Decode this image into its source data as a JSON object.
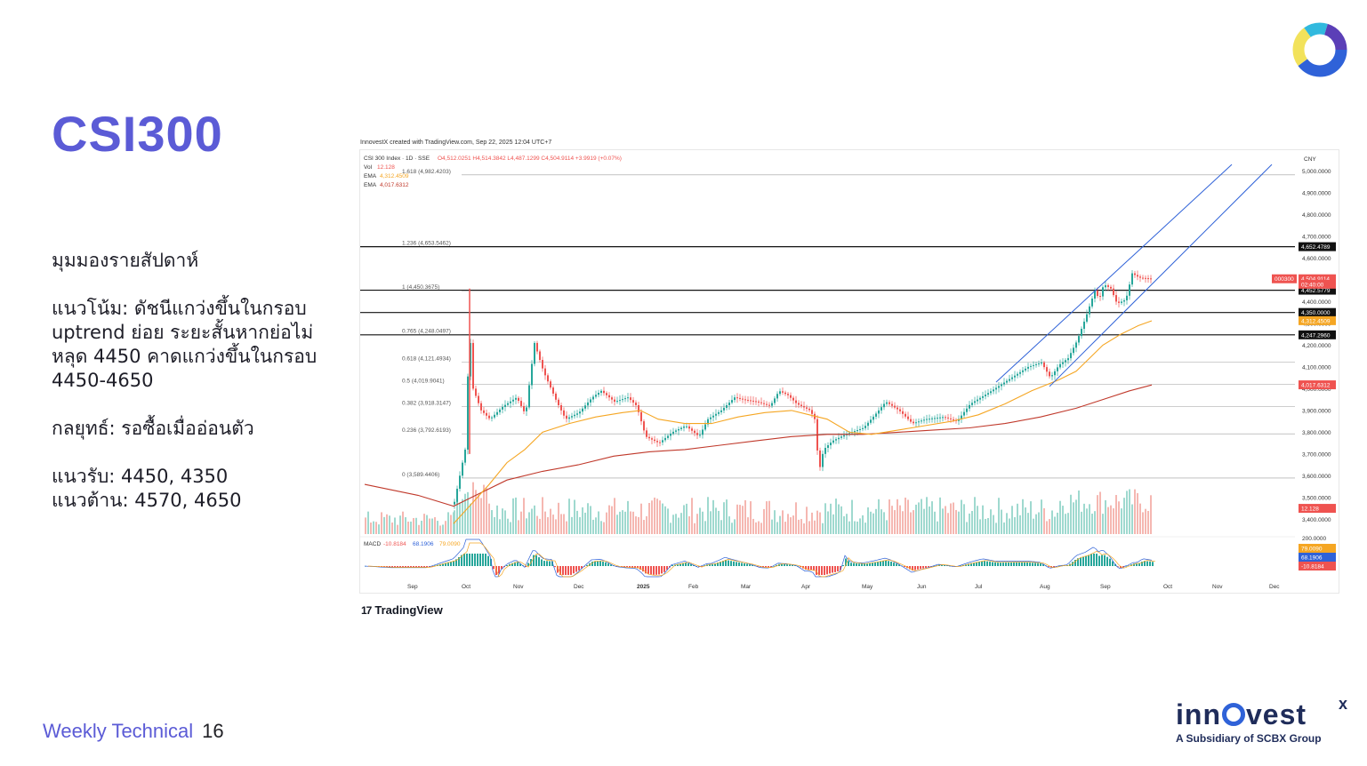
{
  "slide": {
    "title": "CSI300",
    "commentary": {
      "heading": "มุมมองรายสัปดาห์",
      "trend": "แนวโน้ม: ดัชนีแกว่งขึ้นในกรอบ uptrend ย่อย ระยะสั้นหากย่อไม่หลุด 4450 คาดแกว่งขึ้นในกรอบ 4450-4650",
      "strategy": "กลยุทธ์: รอซื้อเมื่ออ่อนตัว",
      "support": "แนวรับ: 4450, 4350",
      "resistance": "แนวต้าน: 4570, 4650"
    },
    "footer": {
      "label": "Weekly Technical",
      "page": "16"
    },
    "brand": {
      "name_pre": "inn",
      "name_post": "vest",
      "superscript": "x",
      "tagline": "A Subsidiary of SCBX Group"
    },
    "colors": {
      "accent": "#5b5bd6",
      "brand_navy": "#1f2c5a",
      "logo_blue": "#2f62d8"
    },
    "icons": {
      "logo": "ring-logo-icon",
      "tradingview": "tradingview-logo-icon"
    }
  },
  "chart_data": {
    "type": "candlestick",
    "credit": "InnovestX created with TradingView.com, Sep 22, 2025 12:04 UTC+7",
    "legend": {
      "symbol_line": "CSI 300 Index · 1D · SSE",
      "ohlc": {
        "O": "4,512.0251",
        "H": "4,514.3842",
        "L": "4,487.1299",
        "C": "4,504.9114",
        "change": "+3.9919 (+0.07%)"
      },
      "vol_label": "Vol",
      "vol_value": "12.128",
      "ema1_label": "EMA",
      "ema1_value": "4,312.4509",
      "ema2_label": "EMA",
      "ema2_value": "4,017.6312"
    },
    "currency": "CNY",
    "y_axis_ticks": [
      5000,
      4900,
      4800,
      4700,
      4600,
      4500,
      4400,
      4300,
      4200,
      4100,
      4000,
      3900,
      3800,
      3700,
      3600,
      3500,
      3400
    ],
    "y_tick_labels": [
      "5,000.0000",
      "4,900.0000",
      "4,800.0000",
      "4,700.0000",
      "4,600.0000",
      "4,500.0000",
      "4,400.0000",
      "4,300.0000",
      "4,200.0000",
      "4,100.0000",
      "4,000.0000",
      "3,900.0000",
      "3,800.0000",
      "3,700.0000",
      "3,600.0000",
      "3,500.0000",
      "3,400.0000"
    ],
    "x_axis_labels": [
      "Sep",
      "Oct",
      "Nov",
      "Dec",
      "2025",
      "Feb",
      "Mar",
      "Apr",
      "May",
      "Jun",
      "Jul",
      "Aug",
      "Sep",
      "Oct",
      "Nov",
      "Dec"
    ],
    "fibonacci": [
      {
        "label": "1.618 (4,982.4203)",
        "value": 4982.4203
      },
      {
        "label": "1.236 (4,653.5462)",
        "value": 4653.5462
      },
      {
        "label": "1 (4,450.3675)",
        "value": 4450.3675
      },
      {
        "label": "0.765 (4,248.0497)",
        "value": 4248.0497
      },
      {
        "label": "0.618 (4,121.4934)",
        "value": 4121.4934
      },
      {
        "label": "0.5 (4,019.9041)",
        "value": 4019.9041
      },
      {
        "label": "0.382 (3,918.3147)",
        "value": 3918.3147
      },
      {
        "label": "0.236 (3,792.6193)",
        "value": 3792.6193
      },
      {
        "label": "0 (3,589.4406)",
        "value": 3589.4406
      }
    ],
    "horizontal_levels": [
      {
        "label": "4,652.4789",
        "value": 4652.4789
      },
      {
        "label": "4,452.5779",
        "value": 4452.5779
      },
      {
        "label": "4,350.0000",
        "value": 4350.0
      },
      {
        "label": "4,247.2960",
        "value": 4247.296
      }
    ],
    "price_tags": [
      {
        "label": "000300",
        "value": 4504.9114,
        "color": "#ef5350"
      },
      {
        "label": "4,504.9114",
        "value": 4504.9114,
        "color": "#ef5350"
      },
      {
        "label": "02:40:00",
        "value": 4480,
        "color": "#ef5350"
      },
      {
        "label": "4,312.4509",
        "value": 4312.4509,
        "color": "#f5a623"
      },
      {
        "label": "4,017.6312",
        "value": 4017.6312,
        "color": "#ef5350"
      },
      {
        "label": "12.128",
        "value": 3450,
        "color": "#ef5350"
      }
    ],
    "macd": {
      "label": "MACD",
      "v1": "-10.8184",
      "v2": "68.1906",
      "v3": "79.0090",
      "axis_label": "200.0000",
      "tags": [
        {
          "label": "79.0090",
          "color": "#f5a623"
        },
        {
          "label": "68.1906",
          "color": "#2f62d8"
        },
        {
          "label": "-10.8184",
          "color": "#ef5350"
        }
      ]
    },
    "price_waypoints": [
      [
        0,
        3420
      ],
      [
        70,
        3360
      ],
      [
        100,
        3480
      ],
      [
        112,
        3720
      ],
      [
        117,
        4280
      ],
      [
        121,
        4000
      ],
      [
        130,
        3900
      ],
      [
        140,
        3860
      ],
      [
        155,
        3920
      ],
      [
        170,
        3960
      ],
      [
        180,
        3880
      ],
      [
        185,
        4050
      ],
      [
        190,
        4210
      ],
      [
        200,
        4080
      ],
      [
        215,
        3940
      ],
      [
        225,
        3860
      ],
      [
        240,
        3890
      ],
      [
        255,
        3960
      ],
      [
        265,
        3990
      ],
      [
        280,
        3940
      ],
      [
        295,
        3960
      ],
      [
        305,
        3920
      ],
      [
        315,
        3780
      ],
      [
        330,
        3750
      ],
      [
        345,
        3800
      ],
      [
        360,
        3830
      ],
      [
        375,
        3780
      ],
      [
        385,
        3860
      ],
      [
        400,
        3900
      ],
      [
        415,
        3960
      ],
      [
        425,
        3950
      ],
      [
        440,
        3940
      ],
      [
        455,
        3920
      ],
      [
        465,
        3990
      ],
      [
        475,
        3970
      ],
      [
        485,
        3930
      ],
      [
        500,
        3900
      ],
      [
        505,
        3860
      ],
      [
        510,
        3620
      ],
      [
        515,
        3720
      ],
      [
        525,
        3760
      ],
      [
        540,
        3790
      ],
      [
        560,
        3820
      ],
      [
        575,
        3890
      ],
      [
        585,
        3940
      ],
      [
        600,
        3900
      ],
      [
        615,
        3840
      ],
      [
        630,
        3860
      ],
      [
        650,
        3870
      ],
      [
        665,
        3850
      ],
      [
        680,
        3930
      ],
      [
        700,
        3980
      ],
      [
        715,
        4020
      ],
      [
        730,
        4060
      ],
      [
        745,
        4100
      ],
      [
        760,
        4120
      ],
      [
        770,
        4050
      ],
      [
        780,
        4110
      ],
      [
        790,
        4140
      ],
      [
        800,
        4220
      ],
      [
        810,
        4330
      ],
      [
        820,
        4450
      ],
      [
        825,
        4410
      ],
      [
        830,
        4480
      ],
      [
        838,
        4460
      ],
      [
        845,
        4390
      ],
      [
        855,
        4410
      ],
      [
        862,
        4530
      ],
      [
        870,
        4510
      ],
      [
        885,
        4505
      ]
    ],
    "ema_fast_waypoints": [
      [
        100,
        3380
      ],
      [
        120,
        3470
      ],
      [
        140,
        3560
      ],
      [
        160,
        3660
      ],
      [
        180,
        3720
      ],
      [
        200,
        3800
      ],
      [
        230,
        3840
      ],
      [
        260,
        3870
      ],
      [
        290,
        3890
      ],
      [
        310,
        3900
      ],
      [
        330,
        3860
      ],
      [
        360,
        3840
      ],
      [
        390,
        3840
      ],
      [
        420,
        3870
      ],
      [
        450,
        3890
      ],
      [
        480,
        3900
      ],
      [
        500,
        3880
      ],
      [
        520,
        3860
      ],
      [
        545,
        3800
      ],
      [
        570,
        3790
      ],
      [
        600,
        3810
      ],
      [
        630,
        3830
      ],
      [
        660,
        3850
      ],
      [
        690,
        3880
      ],
      [
        720,
        3930
      ],
      [
        750,
        3990
      ],
      [
        780,
        4040
      ],
      [
        800,
        4080
      ],
      [
        815,
        4140
      ],
      [
        830,
        4200
      ],
      [
        850,
        4250
      ],
      [
        870,
        4290
      ],
      [
        885,
        4312
      ]
    ],
    "ema_slow_waypoints": [
      [
        0,
        3560
      ],
      [
        60,
        3510
      ],
      [
        100,
        3460
      ],
      [
        130,
        3520
      ],
      [
        160,
        3580
      ],
      [
        200,
        3620
      ],
      [
        240,
        3650
      ],
      [
        280,
        3690
      ],
      [
        320,
        3710
      ],
      [
        360,
        3720
      ],
      [
        400,
        3740
      ],
      [
        440,
        3760
      ],
      [
        480,
        3780
      ],
      [
        520,
        3790
      ],
      [
        560,
        3790
      ],
      [
        600,
        3800
      ],
      [
        640,
        3810
      ],
      [
        680,
        3820
      ],
      [
        720,
        3840
      ],
      [
        760,
        3870
      ],
      [
        800,
        3910
      ],
      [
        830,
        3950
      ],
      [
        860,
        3990
      ],
      [
        885,
        4017
      ]
    ],
    "channel_lines": [
      {
        "start": [
          710,
          4030
        ],
        "end": [
          975,
          5030
        ]
      },
      {
        "start": [
          770,
          4010
        ],
        "end": [
          1020,
          5030
        ]
      }
    ]
  }
}
